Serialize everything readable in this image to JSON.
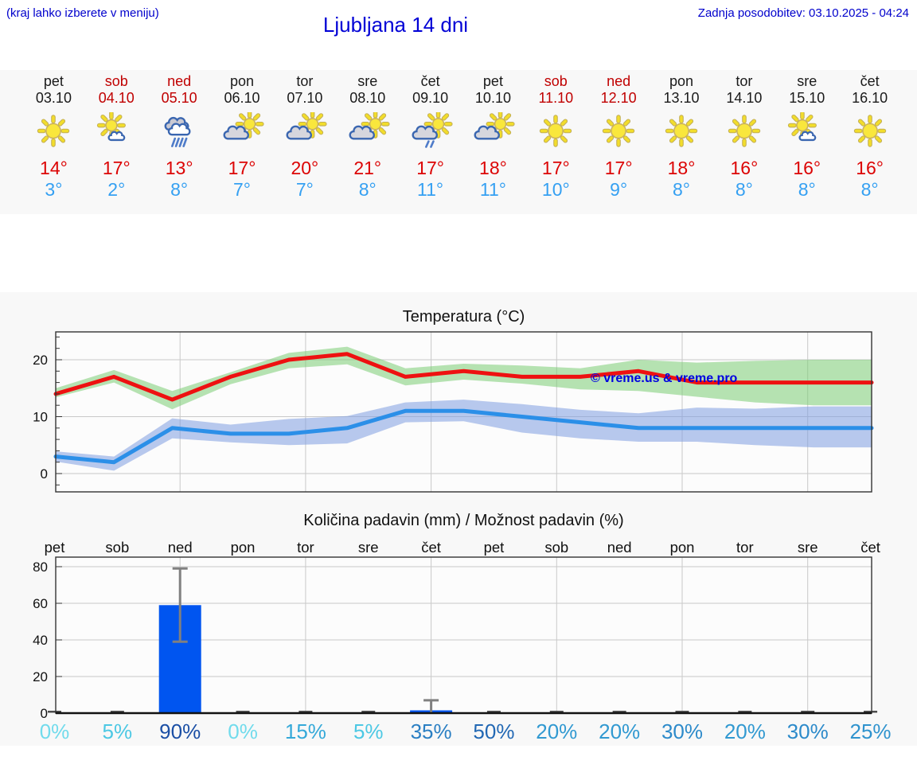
{
  "header": {
    "menu_hint": "(kraj lahko izberete v meniju)",
    "title": "Ljubljana 14 dni",
    "last_update": "Zadnja posodobitev: 03.10.2025 - 04:24"
  },
  "colors": {
    "link_blue": "#0000cc",
    "title_blue": "#0000d6",
    "weekend_red": "#c00000",
    "tmax_red": "#dc0404",
    "tmin_blue": "#35a0f2",
    "section_bg": "#f8f8f8",
    "watermark_blue": "#0000e0"
  },
  "forecast_days": [
    {
      "day": "pet",
      "date": "03.10",
      "weekend": false,
      "icon": "sun",
      "tmax": "14°",
      "tmin": "3°"
    },
    {
      "day": "sob",
      "date": "04.10",
      "weekend": true,
      "icon": "sun-cloud",
      "tmax": "17°",
      "tmin": "2°"
    },
    {
      "day": "ned",
      "date": "05.10",
      "weekend": true,
      "icon": "rain",
      "tmax": "13°",
      "tmin": "8°"
    },
    {
      "day": "pon",
      "date": "06.10",
      "weekend": false,
      "icon": "cloud-sun",
      "tmax": "17°",
      "tmin": "7°"
    },
    {
      "day": "tor",
      "date": "07.10",
      "weekend": false,
      "icon": "cloud-sun",
      "tmax": "20°",
      "tmin": "7°"
    },
    {
      "day": "sre",
      "date": "08.10",
      "weekend": false,
      "icon": "cloud-sun",
      "tmax": "21°",
      "tmin": "8°"
    },
    {
      "day": "čet",
      "date": "09.10",
      "weekend": false,
      "icon": "cloud-sun-drizzle",
      "tmax": "17°",
      "tmin": "11°"
    },
    {
      "day": "pet",
      "date": "10.10",
      "weekend": false,
      "icon": "cloud-sun",
      "tmax": "18°",
      "tmin": "11°"
    },
    {
      "day": "sob",
      "date": "11.10",
      "weekend": true,
      "icon": "sun",
      "tmax": "17°",
      "tmin": "10°"
    },
    {
      "day": "ned",
      "date": "12.10",
      "weekend": true,
      "icon": "sun",
      "tmax": "17°",
      "tmin": "9°"
    },
    {
      "day": "pon",
      "date": "13.10",
      "weekend": false,
      "icon": "sun",
      "tmax": "18°",
      "tmin": "8°"
    },
    {
      "day": "tor",
      "date": "14.10",
      "weekend": false,
      "icon": "sun",
      "tmax": "16°",
      "tmin": "8°"
    },
    {
      "day": "sre",
      "date": "15.10",
      "weekend": false,
      "icon": "sun-cloud",
      "tmax": "16°",
      "tmin": "8°"
    },
    {
      "day": "čet",
      "date": "16.10",
      "weekend": false,
      "icon": "sun",
      "tmax": "16°",
      "tmin": "8°"
    }
  ],
  "chart_data": [
    {
      "type": "line",
      "title": "Temperatura (°C)",
      "watermark": "© vreme.us & vreme.pro",
      "categories": [
        "pet",
        "sob",
        "ned",
        "pon",
        "tor",
        "sre",
        "čet",
        "pet",
        "sob",
        "ned",
        "pon",
        "tor",
        "sre",
        "čet"
      ],
      "ylim": [
        -3.2,
        25
      ],
      "yticks": [
        0,
        10,
        20
      ],
      "grid": true,
      "series": [
        {
          "name": "max",
          "color": "#ee1111",
          "values": [
            14,
            17,
            13,
            17,
            20,
            21,
            17,
            18,
            17,
            17,
            18,
            16,
            16,
            16
          ]
        },
        {
          "name": "min",
          "color": "#2b8fe8",
          "values": [
            3,
            2,
            8,
            7,
            7,
            8,
            11,
            11,
            10,
            9,
            8,
            8,
            8,
            8
          ]
        }
      ],
      "bands": [
        {
          "name": "max-range",
          "color": "#7acc72",
          "upper": [
            15.0,
            18.2,
            14.5,
            17.8,
            21.2,
            22.3,
            18.5,
            19.3,
            19.0,
            18.5,
            20.0,
            19.5,
            19.8,
            20.0
          ],
          "lower": [
            13.4,
            16.0,
            11.3,
            15.7,
            18.5,
            19.2,
            15.5,
            16.5,
            15.8,
            14.8,
            14.5,
            13.5,
            12.5,
            12.0
          ]
        },
        {
          "name": "min-range",
          "color": "#7d9ce0",
          "upper": [
            3.9,
            3.0,
            9.7,
            8.6,
            9.6,
            10.1,
            12.5,
            13.0,
            12.2,
            11.2,
            10.6,
            11.6,
            11.4,
            11.8
          ],
          "lower": [
            2.1,
            0.5,
            6.2,
            5.5,
            5.0,
            5.3,
            9.0,
            9.2,
            7.2,
            6.2,
            5.6,
            5.6,
            5.0,
            4.6
          ]
        }
      ]
    },
    {
      "type": "bar",
      "title": "Količina padavin (mm) / Možnost padavin (%)",
      "categories": [
        "pet",
        "sob",
        "ned",
        "pon",
        "tor",
        "sre",
        "čet",
        "pet",
        "sob",
        "ned",
        "pon",
        "tor",
        "sre",
        "čet"
      ],
      "values_mm": [
        0,
        0,
        59,
        0,
        0,
        0,
        1.5,
        0,
        0,
        0,
        0,
        0,
        0,
        0
      ],
      "error_bars": [
        {
          "day_index": 2,
          "low": 39,
          "high": 79
        },
        {
          "day_index": 6,
          "low": 0,
          "high": 7
        }
      ],
      "probability_pct": [
        0,
        5,
        90,
        0,
        15,
        5,
        35,
        50,
        20,
        20,
        30,
        20,
        30,
        25
      ],
      "probability_colors": [
        "#71dbec",
        "#4cc8e4",
        "#1b4fa5",
        "#71dbec",
        "#35a9d9",
        "#4cc8e4",
        "#2a7fc3",
        "#2268b4",
        "#3199d1",
        "#3199d1",
        "#2c8aca",
        "#3199d1",
        "#2c8aca",
        "#2f93ce"
      ],
      "bar_color": "#0055f0",
      "error_bar_color": "#808080",
      "ylim": [
        0,
        85
      ],
      "yticks": [
        0,
        20,
        40,
        60,
        80
      ],
      "grid": true
    }
  ]
}
